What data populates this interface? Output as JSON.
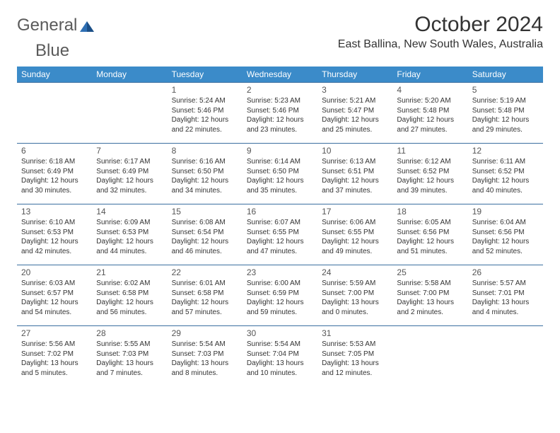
{
  "logo": {
    "text1": "General",
    "text2": "Blue",
    "color_text": "#5a5a5a",
    "color_icon": "#2e6fb4"
  },
  "header": {
    "month_title": "October 2024",
    "location": "East Ballina, New South Wales, Australia"
  },
  "colors": {
    "header_bg": "#3b8bc9",
    "header_text": "#ffffff",
    "row_border": "#3b6fa0"
  },
  "day_names": [
    "Sunday",
    "Monday",
    "Tuesday",
    "Wednesday",
    "Thursday",
    "Friday",
    "Saturday"
  ],
  "weeks": [
    [
      null,
      null,
      {
        "n": "1",
        "sr": "5:24 AM",
        "ss": "5:46 PM",
        "dl": "12 hours and 22 minutes."
      },
      {
        "n": "2",
        "sr": "5:23 AM",
        "ss": "5:46 PM",
        "dl": "12 hours and 23 minutes."
      },
      {
        "n": "3",
        "sr": "5:21 AM",
        "ss": "5:47 PM",
        "dl": "12 hours and 25 minutes."
      },
      {
        "n": "4",
        "sr": "5:20 AM",
        "ss": "5:48 PM",
        "dl": "12 hours and 27 minutes."
      },
      {
        "n": "5",
        "sr": "5:19 AM",
        "ss": "5:48 PM",
        "dl": "12 hours and 29 minutes."
      }
    ],
    [
      {
        "n": "6",
        "sr": "6:18 AM",
        "ss": "6:49 PM",
        "dl": "12 hours and 30 minutes."
      },
      {
        "n": "7",
        "sr": "6:17 AM",
        "ss": "6:49 PM",
        "dl": "12 hours and 32 minutes."
      },
      {
        "n": "8",
        "sr": "6:16 AM",
        "ss": "6:50 PM",
        "dl": "12 hours and 34 minutes."
      },
      {
        "n": "9",
        "sr": "6:14 AM",
        "ss": "6:50 PM",
        "dl": "12 hours and 35 minutes."
      },
      {
        "n": "10",
        "sr": "6:13 AM",
        "ss": "6:51 PM",
        "dl": "12 hours and 37 minutes."
      },
      {
        "n": "11",
        "sr": "6:12 AM",
        "ss": "6:52 PM",
        "dl": "12 hours and 39 minutes."
      },
      {
        "n": "12",
        "sr": "6:11 AM",
        "ss": "6:52 PM",
        "dl": "12 hours and 40 minutes."
      }
    ],
    [
      {
        "n": "13",
        "sr": "6:10 AM",
        "ss": "6:53 PM",
        "dl": "12 hours and 42 minutes."
      },
      {
        "n": "14",
        "sr": "6:09 AM",
        "ss": "6:53 PM",
        "dl": "12 hours and 44 minutes."
      },
      {
        "n": "15",
        "sr": "6:08 AM",
        "ss": "6:54 PM",
        "dl": "12 hours and 46 minutes."
      },
      {
        "n": "16",
        "sr": "6:07 AM",
        "ss": "6:55 PM",
        "dl": "12 hours and 47 minutes."
      },
      {
        "n": "17",
        "sr": "6:06 AM",
        "ss": "6:55 PM",
        "dl": "12 hours and 49 minutes."
      },
      {
        "n": "18",
        "sr": "6:05 AM",
        "ss": "6:56 PM",
        "dl": "12 hours and 51 minutes."
      },
      {
        "n": "19",
        "sr": "6:04 AM",
        "ss": "6:56 PM",
        "dl": "12 hours and 52 minutes."
      }
    ],
    [
      {
        "n": "20",
        "sr": "6:03 AM",
        "ss": "6:57 PM",
        "dl": "12 hours and 54 minutes."
      },
      {
        "n": "21",
        "sr": "6:02 AM",
        "ss": "6:58 PM",
        "dl": "12 hours and 56 minutes."
      },
      {
        "n": "22",
        "sr": "6:01 AM",
        "ss": "6:58 PM",
        "dl": "12 hours and 57 minutes."
      },
      {
        "n": "23",
        "sr": "6:00 AM",
        "ss": "6:59 PM",
        "dl": "12 hours and 59 minutes."
      },
      {
        "n": "24",
        "sr": "5:59 AM",
        "ss": "7:00 PM",
        "dl": "13 hours and 0 minutes."
      },
      {
        "n": "25",
        "sr": "5:58 AM",
        "ss": "7:00 PM",
        "dl": "13 hours and 2 minutes."
      },
      {
        "n": "26",
        "sr": "5:57 AM",
        "ss": "7:01 PM",
        "dl": "13 hours and 4 minutes."
      }
    ],
    [
      {
        "n": "27",
        "sr": "5:56 AM",
        "ss": "7:02 PM",
        "dl": "13 hours and 5 minutes."
      },
      {
        "n": "28",
        "sr": "5:55 AM",
        "ss": "7:03 PM",
        "dl": "13 hours and 7 minutes."
      },
      {
        "n": "29",
        "sr": "5:54 AM",
        "ss": "7:03 PM",
        "dl": "13 hours and 8 minutes."
      },
      {
        "n": "30",
        "sr": "5:54 AM",
        "ss": "7:04 PM",
        "dl": "13 hours and 10 minutes."
      },
      {
        "n": "31",
        "sr": "5:53 AM",
        "ss": "7:05 PM",
        "dl": "13 hours and 12 minutes."
      },
      null,
      null
    ]
  ],
  "labels": {
    "sunrise": "Sunrise: ",
    "sunset": "Sunset: ",
    "daylight": "Daylight: "
  }
}
